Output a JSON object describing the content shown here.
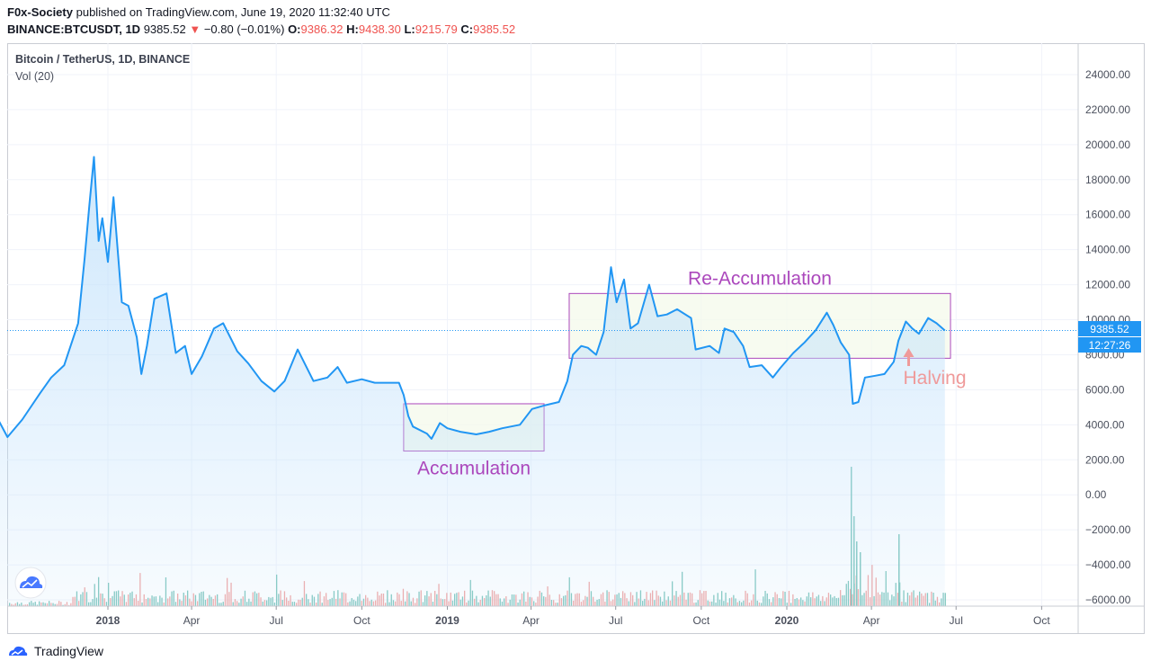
{
  "header": {
    "author": "F0x-Society",
    "published": "published on TradingView.com, June 19, 2020 11:32:40 UTC",
    "symbol": "BINANCE:BTCUSDT, 1D",
    "last": "9385.52",
    "change_arrow": "▼",
    "change": "−0.80 (−0.01%)",
    "o_label": "O:",
    "o": "9386.32",
    "h_label": "H:",
    "h": "9438.30",
    "l_label": "L:",
    "l": "9215.79",
    "c_label": "C:",
    "c": "9385.52"
  },
  "legend": {
    "series": "Bitcoin / TetherUS, 1D, BINANCE",
    "volume": "Vol (20)"
  },
  "price_tag": "9385.52",
  "countdown_tag": "12:27:26",
  "footer": {
    "brand": "TradingView",
    "logo_icon": "tradingview-logo-icon"
  },
  "chart_logo_icon": "tradingview-cloud-icon",
  "colors": {
    "line": "#2196f3",
    "area_top": "#bfe0fb",
    "annotation": "#ab47bc",
    "halving": "#ef9a9a",
    "vol_up": "#7fc6bd",
    "vol_down": "#f1a7a5"
  },
  "chart_data": {
    "type": "area",
    "y_ticks": [
      "24000.00",
      "22000.00",
      "20000.00",
      "18000.00",
      "16000.00",
      "14000.00",
      "12000.00",
      "10000.00",
      "8000.00",
      "6000.00",
      "4000.00",
      "2000.00",
      "0.00",
      "−2000.00",
      "−4000.00",
      "−6000.00"
    ],
    "x_ticks": [
      "2018",
      "Apr",
      "Jul",
      "Oct",
      "2019",
      "Apr",
      "Jul",
      "Oct",
      "2020",
      "Apr",
      "Jul",
      "Oct"
    ],
    "ylim": [
      -6500,
      25500
    ],
    "series": [
      {
        "values": [
          [
            "2017-08-17",
            3700
          ],
          [
            "2017-09-01",
            4700
          ],
          [
            "2017-09-15",
            3300
          ],
          [
            "2017-10-01",
            4300
          ],
          [
            "2017-10-20",
            5800
          ],
          [
            "2017-11-01",
            6700
          ],
          [
            "2017-11-15",
            7400
          ],
          [
            "2017-11-30",
            9800
          ],
          [
            "2017-12-07",
            13500
          ],
          [
            "2017-12-12",
            16500
          ],
          [
            "2017-12-17",
            19300
          ],
          [
            "2017-12-22",
            14500
          ],
          [
            "2017-12-26",
            15800
          ],
          [
            "2018-01-01",
            13300
          ],
          [
            "2018-01-07",
            17000
          ],
          [
            "2018-01-16",
            11000
          ],
          [
            "2018-01-23",
            10800
          ],
          [
            "2018-02-01",
            9000
          ],
          [
            "2018-02-06",
            6900
          ],
          [
            "2018-02-12",
            8500
          ],
          [
            "2018-02-20",
            11200
          ],
          [
            "2018-03-05",
            11500
          ],
          [
            "2018-03-15",
            8100
          ],
          [
            "2018-03-25",
            8500
          ],
          [
            "2018-04-01",
            6900
          ],
          [
            "2018-04-12",
            7900
          ],
          [
            "2018-04-25",
            9500
          ],
          [
            "2018-05-05",
            9800
          ],
          [
            "2018-05-20",
            8200
          ],
          [
            "2018-06-01",
            7500
          ],
          [
            "2018-06-15",
            6500
          ],
          [
            "2018-06-29",
            5900
          ],
          [
            "2018-07-10",
            6500
          ],
          [
            "2018-07-24",
            8300
          ],
          [
            "2018-08-10",
            6500
          ],
          [
            "2018-08-25",
            6700
          ],
          [
            "2018-09-05",
            7300
          ],
          [
            "2018-09-15",
            6400
          ],
          [
            "2018-10-01",
            6600
          ],
          [
            "2018-10-15",
            6400
          ],
          [
            "2018-11-10",
            6400
          ],
          [
            "2018-11-15",
            5700
          ],
          [
            "2018-11-20",
            4500
          ],
          [
            "2018-11-25",
            3900
          ],
          [
            "2018-12-10",
            3500
          ],
          [
            "2018-12-15",
            3200
          ],
          [
            "2018-12-24",
            4100
          ],
          [
            "2019-01-01",
            3800
          ],
          [
            "2019-01-15",
            3600
          ],
          [
            "2019-02-01",
            3450
          ],
          [
            "2019-02-15",
            3600
          ],
          [
            "2019-03-01",
            3800
          ],
          [
            "2019-03-20",
            4000
          ],
          [
            "2019-04-02",
            4900
          ],
          [
            "2019-04-15",
            5100
          ],
          [
            "2019-05-01",
            5300
          ],
          [
            "2019-05-10",
            6500
          ],
          [
            "2019-05-16",
            8000
          ],
          [
            "2019-05-25",
            8500
          ],
          [
            "2019-06-01",
            8400
          ],
          [
            "2019-06-10",
            8000
          ],
          [
            "2019-06-18",
            9300
          ],
          [
            "2019-06-26",
            13000
          ],
          [
            "2019-07-02",
            11000
          ],
          [
            "2019-07-10",
            12300
          ],
          [
            "2019-07-17",
            9500
          ],
          [
            "2019-07-25",
            9800
          ],
          [
            "2019-08-06",
            12000
          ],
          [
            "2019-08-15",
            10200
          ],
          [
            "2019-08-25",
            10300
          ],
          [
            "2019-09-05",
            10600
          ],
          [
            "2019-09-20",
            10100
          ],
          [
            "2019-09-25",
            8300
          ],
          [
            "2019-10-10",
            8500
          ],
          [
            "2019-10-20",
            8100
          ],
          [
            "2019-10-26",
            9500
          ],
          [
            "2019-11-05",
            9300
          ],
          [
            "2019-11-15",
            8500
          ],
          [
            "2019-11-22",
            7300
          ],
          [
            "2019-12-05",
            7400
          ],
          [
            "2019-12-17",
            6700
          ],
          [
            "2019-12-25",
            7250
          ],
          [
            "2020-01-08",
            8100
          ],
          [
            "2020-01-20",
            8700
          ],
          [
            "2020-02-01",
            9400
          ],
          [
            "2020-02-13",
            10400
          ],
          [
            "2020-02-20",
            9700
          ],
          [
            "2020-02-28",
            8700
          ],
          [
            "2020-03-08",
            8000
          ],
          [
            "2020-03-12",
            5200
          ],
          [
            "2020-03-18",
            5300
          ],
          [
            "2020-03-25",
            6700
          ],
          [
            "2020-04-05",
            6800
          ],
          [
            "2020-04-15",
            6900
          ],
          [
            "2020-04-25",
            7600
          ],
          [
            "2020-04-30",
            8800
          ],
          [
            "2020-05-08",
            9900
          ],
          [
            "2020-05-15",
            9500
          ],
          [
            "2020-05-22",
            9200
          ],
          [
            "2020-06-01",
            10100
          ],
          [
            "2020-06-10",
            9800
          ],
          [
            "2020-06-19",
            9385.52
          ]
        ]
      }
    ],
    "annotations": [
      {
        "text": "Accumulation",
        "x_start": "2018-11-15",
        "x_end": "2019-04-15",
        "y_low": 2500,
        "y_high": 5200
      },
      {
        "text": "Re-Accumulation",
        "x_start": "2019-05-12",
        "x_end": "2020-06-25",
        "y_low": 7800,
        "y_high": 11500
      },
      {
        "text": "Halving",
        "x": "2020-05-11"
      }
    ]
  }
}
